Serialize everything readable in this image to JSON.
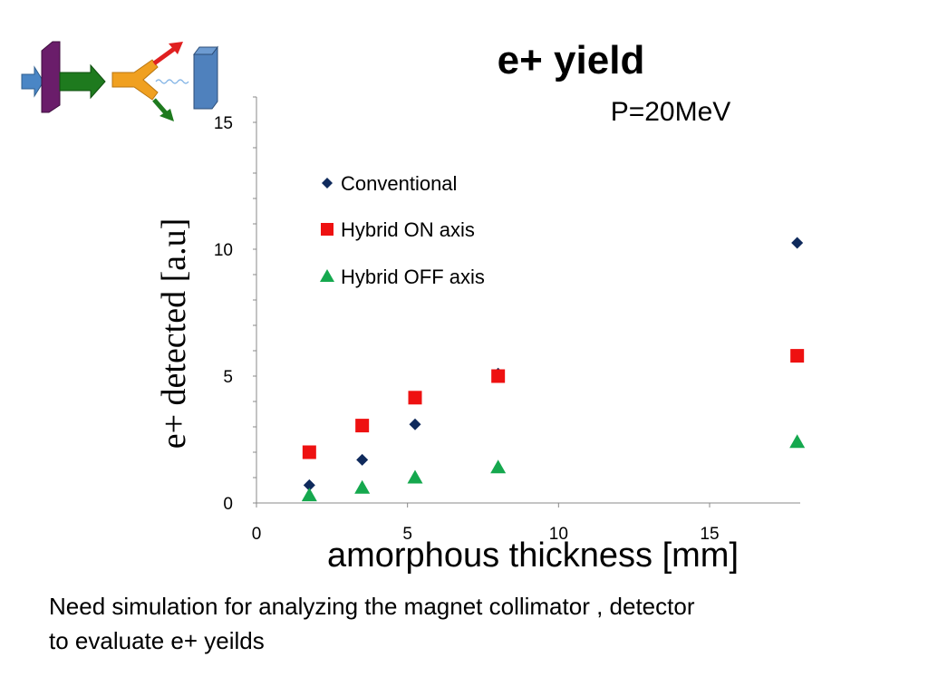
{
  "slide": {
    "title": "e+ yield",
    "subtitle": "P=20MeV",
    "note_line1": "Need simulation for analyzing the magnet collimator , detector",
    "note_line2": "to evaluate e+ yeilds"
  },
  "schematic": {
    "icon": "beamline-schematic-icon",
    "colors": {
      "beam": "#4a86c5",
      "target": "#6a1d6a",
      "arrow": "#1e7a1e",
      "collimator": "#f0a020",
      "up_arrow": "#e02020",
      "detector": "#4f81bd"
    }
  },
  "chart_data": {
    "type": "scatter",
    "xlabel": "amorphous thickness [mm]",
    "ylabel": "e+ detected [a.u]",
    "xlim": [
      0,
      18
    ],
    "ylim": [
      0,
      16
    ],
    "xticks": [
      "0",
      "5",
      "10",
      "15"
    ],
    "yticks": [
      "0",
      "5",
      "10",
      "15"
    ],
    "legend_position": "top-left",
    "grid": false,
    "series": [
      {
        "name": "Conventional",
        "marker": "diamond",
        "color": "#0f2a5c",
        "points": [
          [
            1.75,
            0.7
          ],
          [
            3.5,
            1.7
          ],
          [
            5.25,
            3.1
          ],
          [
            8.0,
            5.1
          ],
          [
            17.9,
            10.25
          ]
        ]
      },
      {
        "name": "Hybrid ON axis",
        "marker": "square",
        "color": "#ee1111",
        "points": [
          [
            1.75,
            2.0
          ],
          [
            3.5,
            3.05
          ],
          [
            5.25,
            4.15
          ],
          [
            8.0,
            5.0
          ],
          [
            17.9,
            5.8
          ]
        ]
      },
      {
        "name": "Hybrid OFF axis",
        "marker": "triangle",
        "color": "#15a84e",
        "points": [
          [
            1.75,
            0.3
          ],
          [
            3.5,
            0.6
          ],
          [
            5.25,
            1.0
          ],
          [
            8.0,
            1.4
          ],
          [
            17.9,
            2.4
          ]
        ]
      }
    ]
  }
}
